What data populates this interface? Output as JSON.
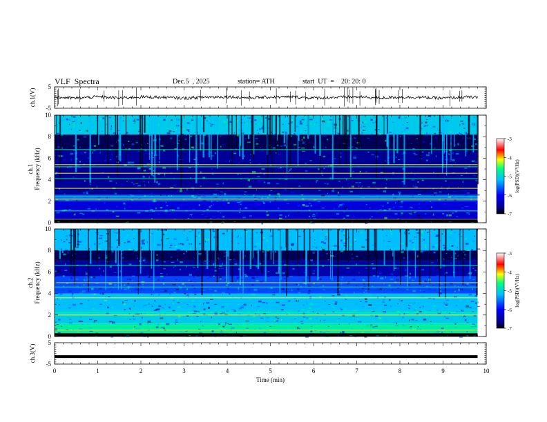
{
  "header": {
    "title": "VLF  Spectra",
    "date": "Dec.5  , 2025",
    "station": "station= ATH",
    "start": "start  UT  =    20: 20: 0"
  },
  "colors": {
    "scale": [
      "#000000",
      "#00008b",
      "#0000ff",
      "#00bfff",
      "#00ff80",
      "#ffff00",
      "#ff0000",
      "#ffffff"
    ]
  },
  "chart_data": [
    {
      "type": "line",
      "name": "ch1-waveform",
      "ylabel": "ch.1(V)",
      "ylim": [
        -5,
        5
      ],
      "yticks": [
        -5,
        5
      ],
      "x": [
        0,
        0.5,
        1,
        1.5,
        2,
        2.5,
        3,
        3.5,
        4,
        4.5,
        5,
        5.5,
        6,
        6.5,
        7,
        7.5,
        8,
        8.5,
        9,
        9.5,
        9.8
      ],
      "y": [
        0.2,
        -0.3,
        0.4,
        -0.2,
        0.3,
        0.1,
        -0.3,
        0.2,
        0.4,
        -0.1,
        0.2,
        0.3,
        -0.2,
        0.1,
        0.3,
        -0.2,
        0.2,
        0.1,
        -0.3,
        0.2,
        0.1
      ]
    },
    {
      "type": "heatmap",
      "name": "ch1-spectrogram",
      "ylabel": "ch.1\nFrequency (kHz)",
      "ylim": [
        0,
        10
      ],
      "yticks": [
        0,
        2,
        4,
        6,
        8,
        10
      ],
      "xlim": [
        0,
        10
      ],
      "data_end_min": 9.8,
      "colorbar": {
        "label": "log(PSD)(V²/Hz)",
        "range": [
          -7,
          -3
        ],
        "ticks": [
          -7,
          -6,
          -5,
          -4,
          -3
        ]
      },
      "lines_khz": [
        0.3,
        1.1,
        2.2,
        2.4,
        3.2,
        4.1,
        4.6,
        5.2,
        5.4,
        6.8
      ],
      "bands_psd": [
        {
          "from_khz": 0.0,
          "to_khz": 0.3,
          "psd": -7
        },
        {
          "from_khz": 0.3,
          "to_khz": 1.0,
          "psd": -6.3
        },
        {
          "from_khz": 1.0,
          "to_khz": 2.0,
          "psd": -6.2
        },
        {
          "from_khz": 2.0,
          "to_khz": 2.6,
          "psd": -5.6
        },
        {
          "from_khz": 2.6,
          "to_khz": 6.8,
          "psd": -6.6
        },
        {
          "from_khz": 6.8,
          "to_khz": 8.2,
          "psd": -6.8
        },
        {
          "from_khz": 8.2,
          "to_khz": 10.0,
          "psd": -5.1
        }
      ]
    },
    {
      "type": "heatmap",
      "name": "ch2-spectrogram",
      "ylabel": "ch.2\nFrequency (kHz)",
      "ylim": [
        0,
        10
      ],
      "yticks": [
        0,
        2,
        4,
        6,
        8,
        10
      ],
      "xlim": [
        0,
        10
      ],
      "data_end_min": 9.8,
      "colorbar": {
        "label": "log(PSD)(V²/Hz)",
        "range": [
          -7,
          -3
        ],
        "ticks": [
          -7,
          -6,
          -5,
          -4,
          -3
        ]
      },
      "lines_khz": [
        0.6,
        1.0,
        2.0,
        2.2,
        3.6,
        4.6,
        5.0,
        6.6
      ],
      "bands_psd": [
        {
          "from_khz": 0.0,
          "to_khz": 0.3,
          "psd": -7
        },
        {
          "from_khz": 0.3,
          "to_khz": 1.2,
          "psd": -4.8
        },
        {
          "from_khz": 1.2,
          "to_khz": 2.5,
          "psd": -5.1
        },
        {
          "from_khz": 2.5,
          "to_khz": 4.0,
          "psd": -5.2
        },
        {
          "from_khz": 4.0,
          "to_khz": 5.6,
          "psd": -5.7
        },
        {
          "from_khz": 5.6,
          "to_khz": 7.0,
          "psd": -6.5
        },
        {
          "from_khz": 7.0,
          "to_khz": 8.0,
          "psd": -6.8
        },
        {
          "from_khz": 8.0,
          "to_khz": 10.0,
          "psd": -5.2
        }
      ]
    },
    {
      "type": "line",
      "name": "ch3-waveform",
      "ylabel": "ch.3(V)",
      "ylim": [
        -5,
        5
      ],
      "yticks": [
        -5,
        5
      ],
      "x": [
        0,
        9.8
      ],
      "y": [
        -1.5,
        -1.5
      ]
    }
  ],
  "xaxis": {
    "label": "Time  (min)",
    "ticks": [
      0,
      1,
      2,
      3,
      4,
      5,
      6,
      7,
      8,
      9,
      10
    ]
  }
}
